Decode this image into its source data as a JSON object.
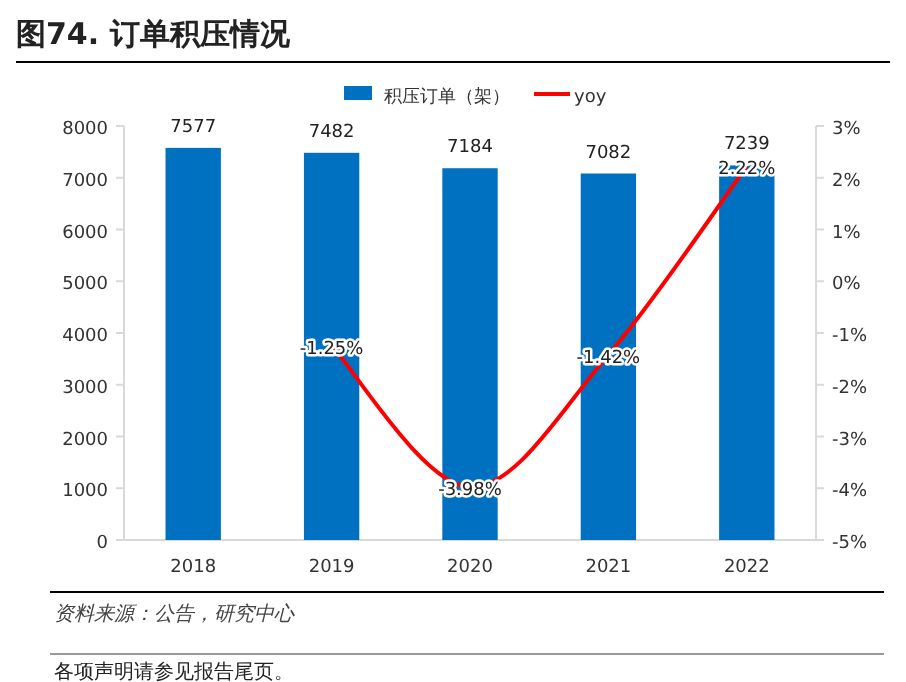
{
  "chart_data": {
    "type": "bar",
    "title": "图74. 订单积压情况",
    "categories": [
      "2018",
      "2019",
      "2020",
      "2021",
      "2022"
    ],
    "series": [
      {
        "name": "积压订单（架）",
        "color": "#0070c0",
        "values": [
          7577,
          7482,
          7184,
          7082,
          7239
        ],
        "value_labels": [
          "7577",
          "7482",
          "7184",
          "7082",
          "7239"
        ]
      },
      {
        "name": "yoy",
        "type": "line",
        "axis": "y2",
        "color": "#ff0000",
        "values": [
          null,
          -1.25,
          -3.98,
          -1.42,
          2.22
        ],
        "value_labels": [
          null,
          "-1.25%",
          "-3.98%",
          "-1.42%",
          "2.22%"
        ]
      }
    ],
    "ylim": [
      0,
      8000
    ],
    "yticks": [
      0,
      1000,
      2000,
      3000,
      4000,
      5000,
      6000,
      7000,
      8000
    ],
    "y2lim": [
      -5,
      3
    ],
    "y2ticks": [
      {
        "value": -5,
        "label": "-5%"
      },
      {
        "value": -4,
        "label": "-4%"
      },
      {
        "value": -3,
        "label": "-3%"
      },
      {
        "value": -2,
        "label": "-2%"
      },
      {
        "value": -1,
        "label": "-1%"
      },
      {
        "value": 0,
        "label": "0%"
      },
      {
        "value": 1,
        "label": "1%"
      },
      {
        "value": 2,
        "label": "2%"
      },
      {
        "value": 3,
        "label": "3%"
      }
    ],
    "legend": "top",
    "grid": false,
    "annotations": [
      "资料来源：公告，研究中心",
      "各项声明请参见报告尾页。"
    ]
  }
}
